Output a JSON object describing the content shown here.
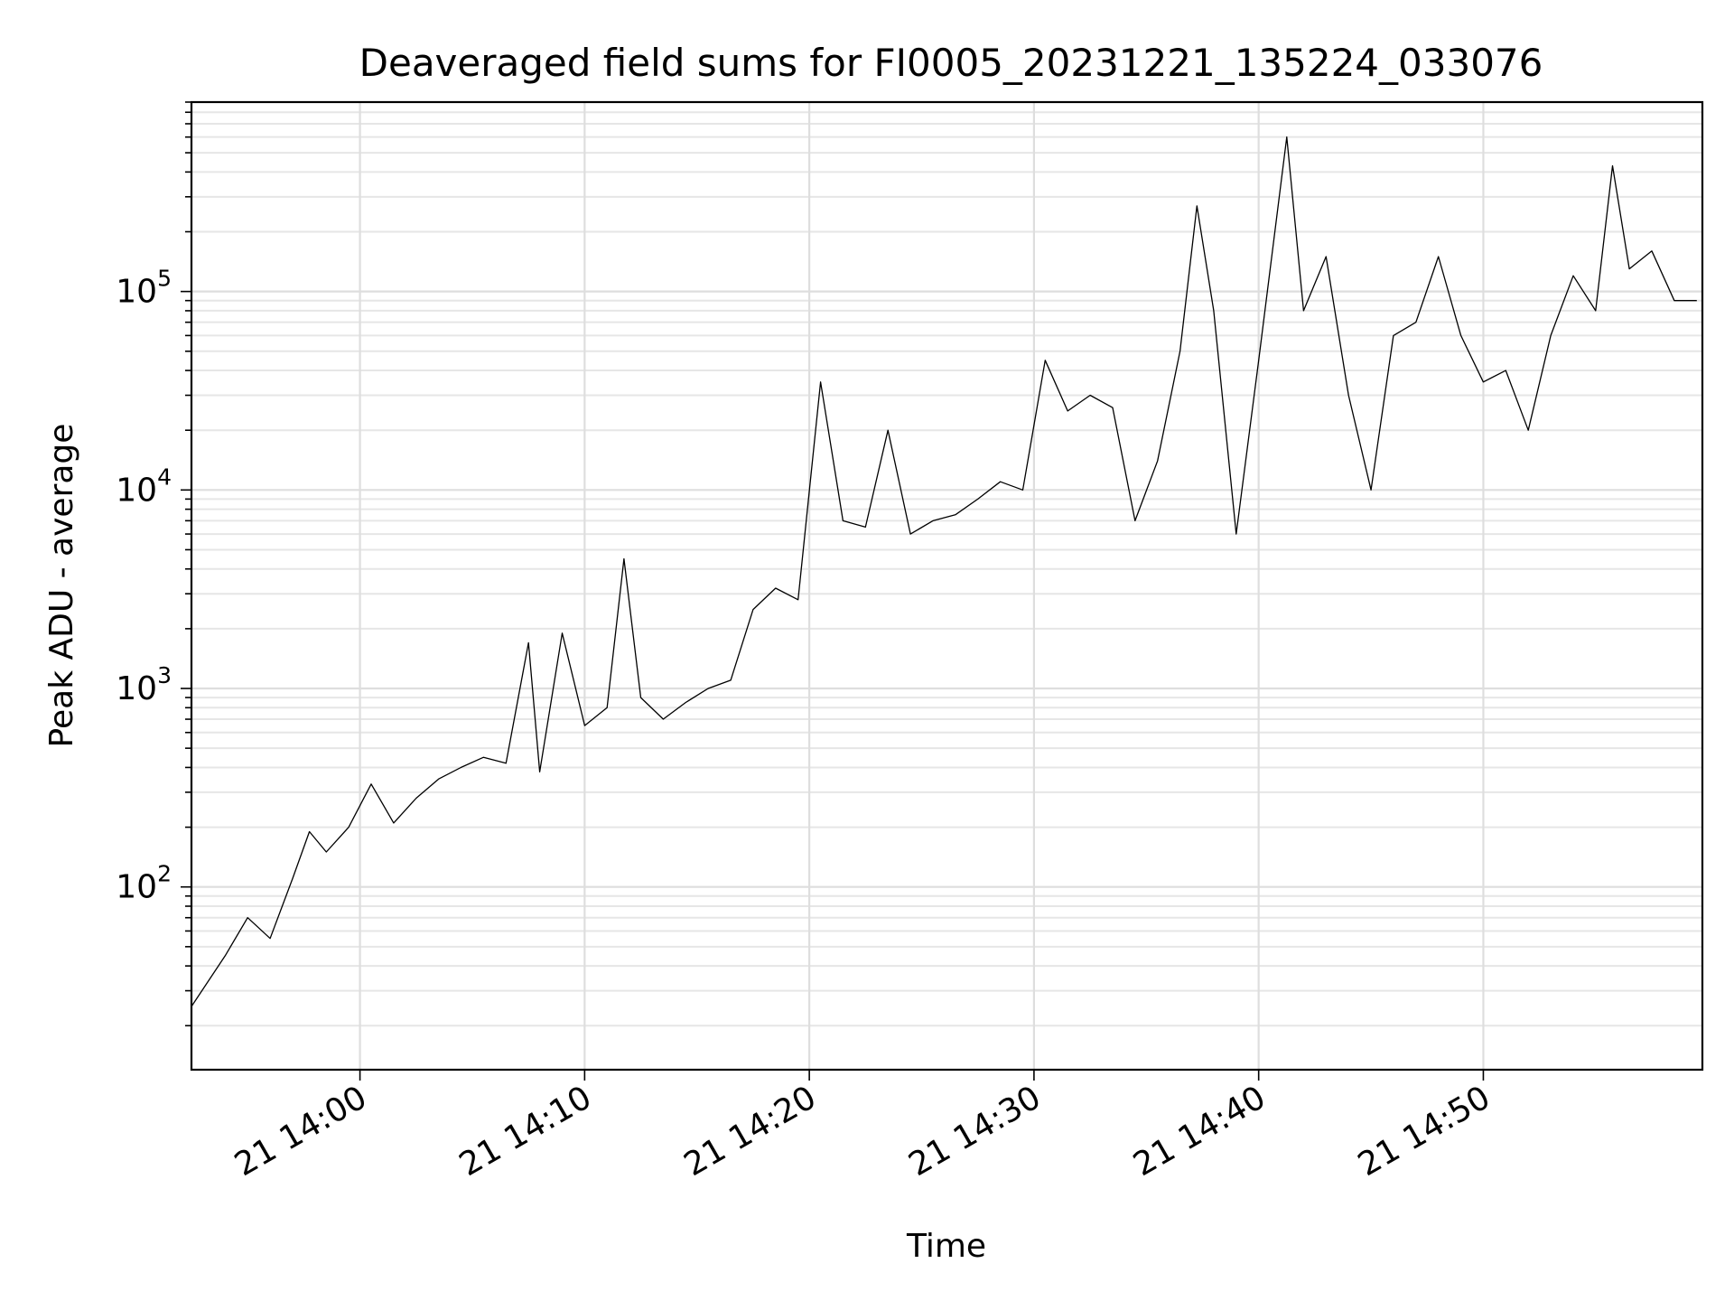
{
  "chart_data": {
    "type": "line",
    "title": "Deaveraged field sums for FI0005_20231221_135224_033076",
    "xlabel": "Time",
    "ylabel": "Peak ADU - average",
    "yscale": "log",
    "grid": "on (major and minor)",
    "xlim": [
      "2023-12-21 13:52:30",
      "2023-12-21 14:59:45"
    ],
    "ylim": [
      12,
      900000
    ],
    "x_ticks": [
      "2023-12-21 14:00",
      "2023-12-21 14:10",
      "2023-12-21 14:20",
      "2023-12-21 14:30",
      "2023-12-21 14:40",
      "2023-12-21 14:50"
    ],
    "x_tick_labels": [
      "21 14:00",
      "21 14:10",
      "21 14:20",
      "21 14:30",
      "21 14:40",
      "21 14:50"
    ],
    "y_ticks": [
      100,
      1000,
      10000,
      100000
    ],
    "y_tick_labels": [
      {
        "base": "10",
        "exp": "2"
      },
      {
        "base": "10",
        "exp": "3"
      },
      {
        "base": "10",
        "exp": "4"
      },
      {
        "base": "10",
        "exp": "5"
      }
    ],
    "series": [
      {
        "color": "#000000",
        "x": [
          "2023-12-21 13:52:30",
          "2023-12-21 13:54:00",
          "2023-12-21 13:55:00",
          "2023-12-21 13:56:00",
          "2023-12-21 13:57:00",
          "2023-12-21 13:57:45",
          "2023-12-21 13:58:30",
          "2023-12-21 13:59:30",
          "2023-12-21 14:00:30",
          "2023-12-21 14:01:30",
          "2023-12-21 14:02:30",
          "2023-12-21 14:03:30",
          "2023-12-21 14:04:30",
          "2023-12-21 14:05:30",
          "2023-12-21 14:06:30",
          "2023-12-21 14:07:30",
          "2023-12-21 14:08:00",
          "2023-12-21 14:09:00",
          "2023-12-21 14:10:00",
          "2023-12-21 14:11:00",
          "2023-12-21 14:11:45",
          "2023-12-21 14:12:30",
          "2023-12-21 14:13:30",
          "2023-12-21 14:14:30",
          "2023-12-21 14:15:30",
          "2023-12-21 14:16:30",
          "2023-12-21 14:17:30",
          "2023-12-21 14:18:30",
          "2023-12-21 14:19:30",
          "2023-12-21 14:20:30",
          "2023-12-21 14:21:30",
          "2023-12-21 14:22:30",
          "2023-12-21 14:23:30",
          "2023-12-21 14:24:30",
          "2023-12-21 14:25:30",
          "2023-12-21 14:26:30",
          "2023-12-21 14:27:30",
          "2023-12-21 14:28:30",
          "2023-12-21 14:29:30",
          "2023-12-21 14:30:30",
          "2023-12-21 14:31:30",
          "2023-12-21 14:32:30",
          "2023-12-21 14:33:30",
          "2023-12-21 14:34:30",
          "2023-12-21 14:35:30",
          "2023-12-21 14:36:30",
          "2023-12-21 14:37:15",
          "2023-12-21 14:38:00",
          "2023-12-21 14:39:00",
          "2023-12-21 14:40:00",
          "2023-12-21 14:41:15",
          "2023-12-21 14:42:00",
          "2023-12-21 14:43:00",
          "2023-12-21 14:44:00",
          "2023-12-21 14:45:00",
          "2023-12-21 14:46:00",
          "2023-12-21 14:47:00",
          "2023-12-21 14:48:00",
          "2023-12-21 14:49:00",
          "2023-12-21 14:50:00",
          "2023-12-21 14:51:00",
          "2023-12-21 14:52:00",
          "2023-12-21 14:53:00",
          "2023-12-21 14:54:00",
          "2023-12-21 14:55:00",
          "2023-12-21 14:55:45",
          "2023-12-21 14:56:30",
          "2023-12-21 14:57:30",
          "2023-12-21 14:58:30",
          "2023-12-21 14:59:30"
        ],
        "values": [
          25,
          45,
          70,
          55,
          110,
          190,
          150,
          200,
          330,
          210,
          280,
          350,
          400,
          450,
          420,
          1700,
          380,
          1900,
          650,
          800,
          4500,
          900,
          700,
          850,
          1000,
          1100,
          2500,
          3200,
          2800,
          35000,
          7000,
          6500,
          20000,
          6000,
          7000,
          7500,
          9000,
          11000,
          10000,
          45000,
          25000,
          30000,
          26000,
          7000,
          14000,
          50000,
          270000,
          80000,
          6000,
          45000,
          600000,
          80000,
          150000,
          30000,
          10000,
          60000,
          70000,
          150000,
          60000,
          35000,
          40000,
          20000,
          60000,
          120000,
          80000,
          430000,
          130000,
          160000,
          90000,
          90000
        ]
      }
    ]
  }
}
